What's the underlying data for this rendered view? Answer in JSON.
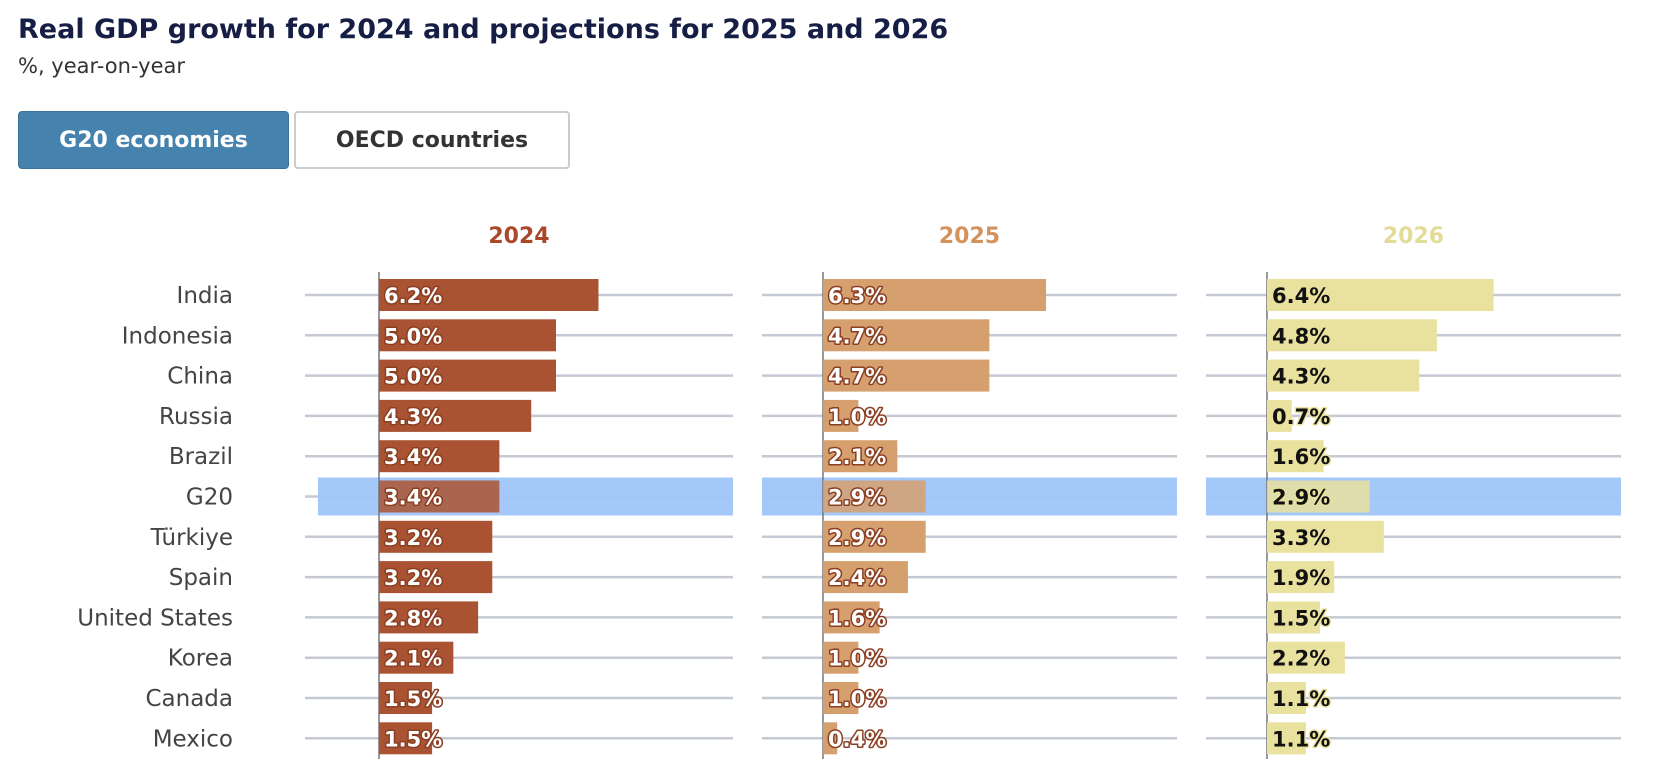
{
  "header": {
    "title": "Real GDP growth for 2024 and projections for 2025 and 2026",
    "subtitle": "%, year-on-year"
  },
  "tabs": [
    {
      "label": "G20 economies",
      "active": true
    },
    {
      "label": "OECD countries",
      "active": false
    }
  ],
  "chart_data": {
    "type": "bar",
    "orientation": "horizontal",
    "categories": [
      "India",
      "Indonesia",
      "China",
      "Russia",
      "Brazil",
      "G20",
      "Türkiye",
      "Spain",
      "United States",
      "Korea",
      "Canada",
      "Mexico"
    ],
    "highlight": "G20",
    "highlight_color": "#9fc5f8",
    "series": [
      {
        "name": "2024",
        "color": "#aa5333",
        "header_color": "#a9482a",
        "values": [
          6.2,
          5.0,
          5.0,
          4.3,
          3.4,
          3.4,
          3.2,
          3.2,
          2.8,
          2.1,
          1.5,
          1.5
        ],
        "labels": [
          "6.2%",
          "5.0%",
          "5.0%",
          "4.3%",
          "3.4%",
          "3.4%",
          "3.2%",
          "3.2%",
          "2.8%",
          "2.1%",
          "1.5%",
          "1.5%"
        ]
      },
      {
        "name": "2025",
        "color": "#d6a06e",
        "header_color": "#d4935c",
        "values": [
          6.3,
          4.7,
          4.7,
          1.0,
          2.1,
          2.9,
          2.9,
          2.4,
          1.6,
          1.0,
          1.0,
          0.4
        ],
        "labels": [
          "6.3%",
          "4.7%",
          "4.7%",
          "1.0%",
          "2.1%",
          "2.9%",
          "2.9%",
          "2.4%",
          "1.6%",
          "1.0%",
          "1.0%",
          "0.4%"
        ]
      },
      {
        "name": "2026",
        "color": "#e9e19e",
        "header_color": "#e3dc98",
        "values": [
          6.4,
          4.8,
          4.3,
          0.7,
          1.6,
          2.9,
          3.3,
          1.9,
          1.5,
          2.2,
          1.1,
          1.1
        ],
        "labels": [
          "6.4%",
          "4.8%",
          "4.3%",
          "0.7%",
          "1.6%",
          "2.9%",
          "3.3%",
          "1.9%",
          "1.5%",
          "2.2%",
          "1.1%",
          "1.1%"
        ]
      }
    ],
    "grid": true,
    "xlim": [
      0,
      11
    ]
  }
}
